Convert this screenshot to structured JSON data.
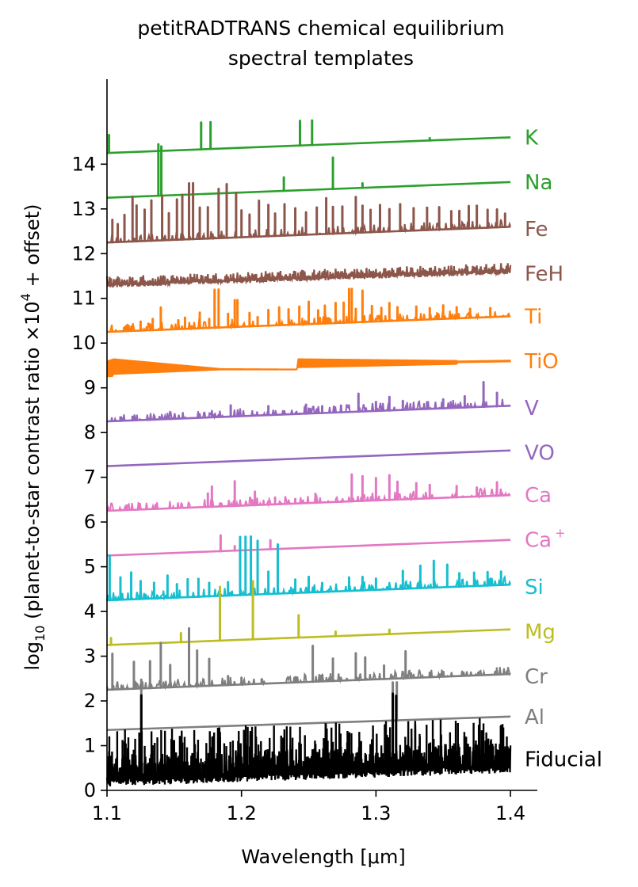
{
  "chart_data": {
    "type": "line",
    "title_line1": "petitRADTRANS chemical equilibrium",
    "title_line2": "spectral templates",
    "xlabel": "Wavelength [μm]",
    "ylabel": {
      "prefix": "log",
      "prefix_sub": "10",
      "middle": " (planet-to-star contrast ratio ×10",
      "middle_sup": "4",
      "suffix": " + offset)"
    },
    "xlim": [
      1.1,
      1.42
    ],
    "ylim": [
      0,
      15.9
    ],
    "x_ticks": [
      {
        "value": 1.1,
        "label": "1.1"
      },
      {
        "value": 1.2,
        "label": "1.2"
      },
      {
        "value": 1.3,
        "label": "1.3"
      },
      {
        "value": 1.4,
        "label": "1.4"
      }
    ],
    "y_ticks": [
      {
        "value": 0,
        "label": "0"
      },
      {
        "value": 1,
        "label": "1"
      },
      {
        "value": 2,
        "label": "2"
      },
      {
        "value": 3,
        "label": "3"
      },
      {
        "value": 4,
        "label": "4"
      },
      {
        "value": 5,
        "label": "5"
      },
      {
        "value": 6,
        "label": "6"
      },
      {
        "value": 7,
        "label": "7"
      },
      {
        "value": 8,
        "label": "8"
      },
      {
        "value": 9,
        "label": "9"
      },
      {
        "value": 10,
        "label": "10"
      },
      {
        "value": 11,
        "label": "11"
      },
      {
        "value": 12,
        "label": "12"
      },
      {
        "value": 13,
        "label": "13"
      },
      {
        "value": 14,
        "label": "14"
      }
    ],
    "series": [
      {
        "name": "K",
        "sup": "",
        "color": "#2ca02c",
        "start": 14.25,
        "end": 14.6,
        "label_y": 14.6,
        "lines": [
          [
            1.1015,
            0.4
          ],
          [
            1.17,
            0.6
          ],
          [
            1.177,
            0.6
          ],
          [
            1.2435,
            0.55
          ],
          [
            1.2525,
            0.55
          ],
          [
            1.34,
            0.05
          ]
        ]
      },
      {
        "name": "Na",
        "sup": "",
        "color": "#2ca02c",
        "start": 13.25,
        "end": 13.6,
        "label_y": 13.6,
        "lines": [
          [
            1.1382,
            1.15
          ],
          [
            1.1404,
            1.1
          ],
          [
            1.2315,
            0.3
          ],
          [
            1.268,
            0.7
          ],
          [
            1.29,
            0.1
          ]
        ]
      },
      {
        "name": "Fe",
        "sup": "",
        "color": "#8c564b",
        "start": 12.25,
        "end": 12.6,
        "label_y": 12.55,
        "lines": [
          [
            1.104,
            0.5
          ],
          [
            1.108,
            0.4
          ],
          [
            1.113,
            0.6
          ],
          [
            1.119,
            1.0
          ],
          [
            1.122,
            0.8
          ],
          [
            1.128,
            0.7
          ],
          [
            1.133,
            0.9
          ],
          [
            1.141,
            1.0
          ],
          [
            1.146,
            0.6
          ],
          [
            1.152,
            0.9
          ],
          [
            1.156,
            1.0
          ],
          [
            1.161,
            1.25
          ],
          [
            1.164,
            1.25
          ],
          [
            1.169,
            0.7
          ],
          [
            1.175,
            0.7
          ],
          [
            1.183,
            1.1
          ],
          [
            1.189,
            1.2
          ],
          [
            1.196,
            1.0
          ],
          [
            1.2,
            0.6
          ],
          [
            1.206,
            0.5
          ],
          [
            1.213,
            0.8
          ],
          [
            1.22,
            0.7
          ],
          [
            1.225,
            0.5
          ],
          [
            1.232,
            0.7
          ],
          [
            1.24,
            0.6
          ],
          [
            1.248,
            0.5
          ],
          [
            1.256,
            0.6
          ],
          [
            1.263,
            0.8
          ],
          [
            1.268,
            0.6
          ],
          [
            1.275,
            0.6
          ],
          [
            1.285,
            0.8
          ],
          [
            1.29,
            0.6
          ],
          [
            1.296,
            0.5
          ],
          [
            1.303,
            0.6
          ],
          [
            1.31,
            0.5
          ],
          [
            1.318,
            0.6
          ],
          [
            1.328,
            0.5
          ],
          [
            1.338,
            0.5
          ],
          [
            1.347,
            0.5
          ],
          [
            1.356,
            0.4
          ],
          [
            1.362,
            0.4
          ],
          [
            1.369,
            0.5
          ],
          [
            1.375,
            0.5
          ],
          [
            1.383,
            0.4
          ],
          [
            1.39,
            0.4
          ],
          [
            1.396,
            0.3
          ]
        ]
      },
      {
        "name": "FeH",
        "sup": "",
        "color": "#8c564b",
        "start": 11.3,
        "end": 11.6,
        "label_y": 11.55,
        "noise": 0.2,
        "lines": []
      },
      {
        "name": "Ti",
        "sup": "",
        "color": "#ff7f0e",
        "start": 10.25,
        "end": 10.6,
        "label_y": 10.6,
        "lines": [
          [
            1.125,
            0.2
          ],
          [
            1.134,
            0.25
          ],
          [
            1.14,
            0.5
          ],
          [
            1.153,
            0.2
          ],
          [
            1.158,
            0.25
          ],
          [
            1.169,
            0.35
          ],
          [
            1.176,
            0.2
          ],
          [
            1.18,
            0.85
          ],
          [
            1.183,
            0.85
          ],
          [
            1.19,
            0.3
          ],
          [
            1.195,
            0.6
          ],
          [
            1.197,
            0.6
          ],
          [
            1.206,
            0.3
          ],
          [
            1.212,
            0.2
          ],
          [
            1.22,
            0.35
          ],
          [
            1.228,
            0.4
          ],
          [
            1.235,
            0.35
          ],
          [
            1.243,
            0.4
          ],
          [
            1.25,
            0.5
          ],
          [
            1.257,
            0.3
          ],
          [
            1.262,
            0.4
          ],
          [
            1.27,
            0.45
          ],
          [
            1.276,
            0.45
          ],
          [
            1.28,
            0.75
          ],
          [
            1.282,
            0.75
          ],
          [
            1.285,
            0.3
          ],
          [
            1.29,
            0.7
          ],
          [
            1.297,
            0.35
          ],
          [
            1.304,
            0.3
          ],
          [
            1.31,
            0.4
          ],
          [
            1.316,
            0.3
          ],
          [
            1.33,
            0.3
          ],
          [
            1.34,
            0.25
          ],
          [
            1.35,
            0.3
          ],
          [
            1.36,
            0.25
          ],
          [
            1.37,
            0.2
          ],
          [
            1.385,
            0.2
          ]
        ]
      },
      {
        "name": "TiO",
        "sup": "",
        "color": "#ff7f0e",
        "start": 9.45,
        "end": 9.6,
        "label_y": 9.6,
        "band": true,
        "lines": []
      },
      {
        "name": "V",
        "sup": "",
        "color": "#9467bd",
        "start": 8.25,
        "end": 8.6,
        "label_y": 8.55,
        "lines": [
          [
            1.11,
            0.08
          ],
          [
            1.119,
            0.08
          ],
          [
            1.135,
            0.05
          ],
          [
            1.192,
            0.25
          ],
          [
            1.22,
            0.2
          ],
          [
            1.248,
            0.2
          ],
          [
            1.26,
            0.15
          ],
          [
            1.274,
            0.15
          ],
          [
            1.287,
            0.4
          ],
          [
            1.3,
            0.2
          ],
          [
            1.31,
            0.3
          ],
          [
            1.32,
            0.2
          ],
          [
            1.338,
            0.15
          ],
          [
            1.35,
            0.2
          ],
          [
            1.366,
            0.25
          ],
          [
            1.38,
            0.55
          ],
          [
            1.39,
            0.3
          ]
        ]
      },
      {
        "name": "VO",
        "sup": "",
        "color": "#9467bd",
        "start": 7.25,
        "end": 7.6,
        "label_y": 7.55,
        "lines": []
      },
      {
        "name": "Ca",
        "sup": "",
        "color": "#e377c2",
        "start": 6.25,
        "end": 6.6,
        "label_y": 6.6,
        "lines": [
          [
            1.175,
            0.3
          ],
          [
            1.178,
            0.45
          ],
          [
            1.195,
            0.55
          ],
          [
            1.21,
            0.3
          ],
          [
            1.225,
            0.15
          ],
          [
            1.24,
            0.1
          ],
          [
            1.255,
            0.2
          ],
          [
            1.282,
            0.6
          ],
          [
            1.29,
            0.55
          ],
          [
            1.3,
            0.5
          ],
          [
            1.31,
            0.55
          ],
          [
            1.316,
            0.4
          ],
          [
            1.33,
            0.35
          ],
          [
            1.34,
            0.3
          ],
          [
            1.36,
            0.25
          ],
          [
            1.375,
            0.2
          ],
          [
            1.39,
            0.3
          ]
        ]
      },
      {
        "name": "Ca",
        "sup": "+",
        "color": "#e377c2",
        "start": 5.25,
        "end": 5.6,
        "label_y": 5.6,
        "lines": [
          [
            1.1845,
            0.35
          ],
          [
            1.195,
            0.1
          ],
          [
            1.2215,
            0.2
          ]
        ]
      },
      {
        "name": "Si",
        "sup": "",
        "color": "#17becf",
        "start": 4.25,
        "end": 4.6,
        "label_y": 4.55,
        "lines": [
          [
            1.102,
            1.0
          ],
          [
            1.11,
            0.5
          ],
          [
            1.118,
            0.6
          ],
          [
            1.125,
            0.4
          ],
          [
            1.135,
            0.35
          ],
          [
            1.145,
            0.5
          ],
          [
            1.152,
            0.3
          ],
          [
            1.16,
            0.4
          ],
          [
            1.168,
            0.4
          ],
          [
            1.176,
            0.3
          ],
          [
            1.19,
            0.3
          ],
          [
            1.199,
            1.3
          ],
          [
            1.203,
            1.3
          ],
          [
            1.207,
            1.3
          ],
          [
            1.212,
            1.2
          ],
          [
            1.22,
            0.5
          ],
          [
            1.227,
            1.1
          ],
          [
            1.24,
            0.3
          ],
          [
            1.25,
            0.35
          ],
          [
            1.26,
            0.2
          ],
          [
            1.28,
            0.3
          ],
          [
            1.29,
            0.3
          ],
          [
            1.3,
            0.25
          ],
          [
            1.32,
            0.4
          ],
          [
            1.333,
            0.5
          ],
          [
            1.343,
            0.6
          ],
          [
            1.353,
            0.5
          ],
          [
            1.362,
            0.3
          ],
          [
            1.373,
            0.3
          ],
          [
            1.383,
            0.3
          ],
          [
            1.393,
            0.3
          ]
        ]
      },
      {
        "name": "Mg",
        "sup": "",
        "color": "#bcbd22",
        "start": 3.25,
        "end": 3.6,
        "label_y": 3.55,
        "lines": [
          [
            1.103,
            0.15
          ],
          [
            1.155,
            0.2
          ],
          [
            1.184,
            1.2
          ],
          [
            1.2085,
            1.3
          ],
          [
            1.2425,
            0.5
          ],
          [
            1.27,
            0.1
          ],
          [
            1.31,
            0.1
          ]
        ]
      },
      {
        "name": "Cr",
        "sup": "",
        "color": "#7f7f7f",
        "start": 2.25,
        "end": 2.6,
        "label_y": 2.55,
        "lines": [
          [
            1.104,
            0.8
          ],
          [
            1.12,
            0.6
          ],
          [
            1.132,
            0.6
          ],
          [
            1.14,
            1.0
          ],
          [
            1.147,
            0.5
          ],
          [
            1.161,
            1.3
          ],
          [
            1.167,
            0.8
          ],
          [
            1.176,
            0.6
          ],
          [
            1.19,
            0.2
          ],
          [
            1.2,
            0.15
          ],
          [
            1.215,
            0.1
          ],
          [
            1.253,
            0.8
          ],
          [
            1.268,
            0.5
          ],
          [
            1.285,
            0.6
          ],
          [
            1.292,
            0.5
          ],
          [
            1.306,
            0.3
          ],
          [
            1.322,
            0.6
          ],
          [
            1.34,
            0.1
          ]
        ]
      },
      {
        "name": "Al",
        "sup": "",
        "color": "#7f7f7f",
        "start": 1.35,
        "end": 1.65,
        "label_y": 1.65,
        "lines": [
          [
            1.1255,
            1.1
          ],
          [
            1.3125,
            0.85
          ],
          [
            1.3155,
            0.85
          ]
        ]
      },
      {
        "name": "Fiducial",
        "sup": "",
        "color": "#000000",
        "start": 0.4,
        "end": 0.7,
        "label_y": 0.7,
        "dense": true,
        "lines": [
          [
            1.1255,
            1.9
          ],
          [
            1.3125,
            1.75
          ],
          [
            1.315,
            1.7
          ]
        ]
      }
    ]
  }
}
